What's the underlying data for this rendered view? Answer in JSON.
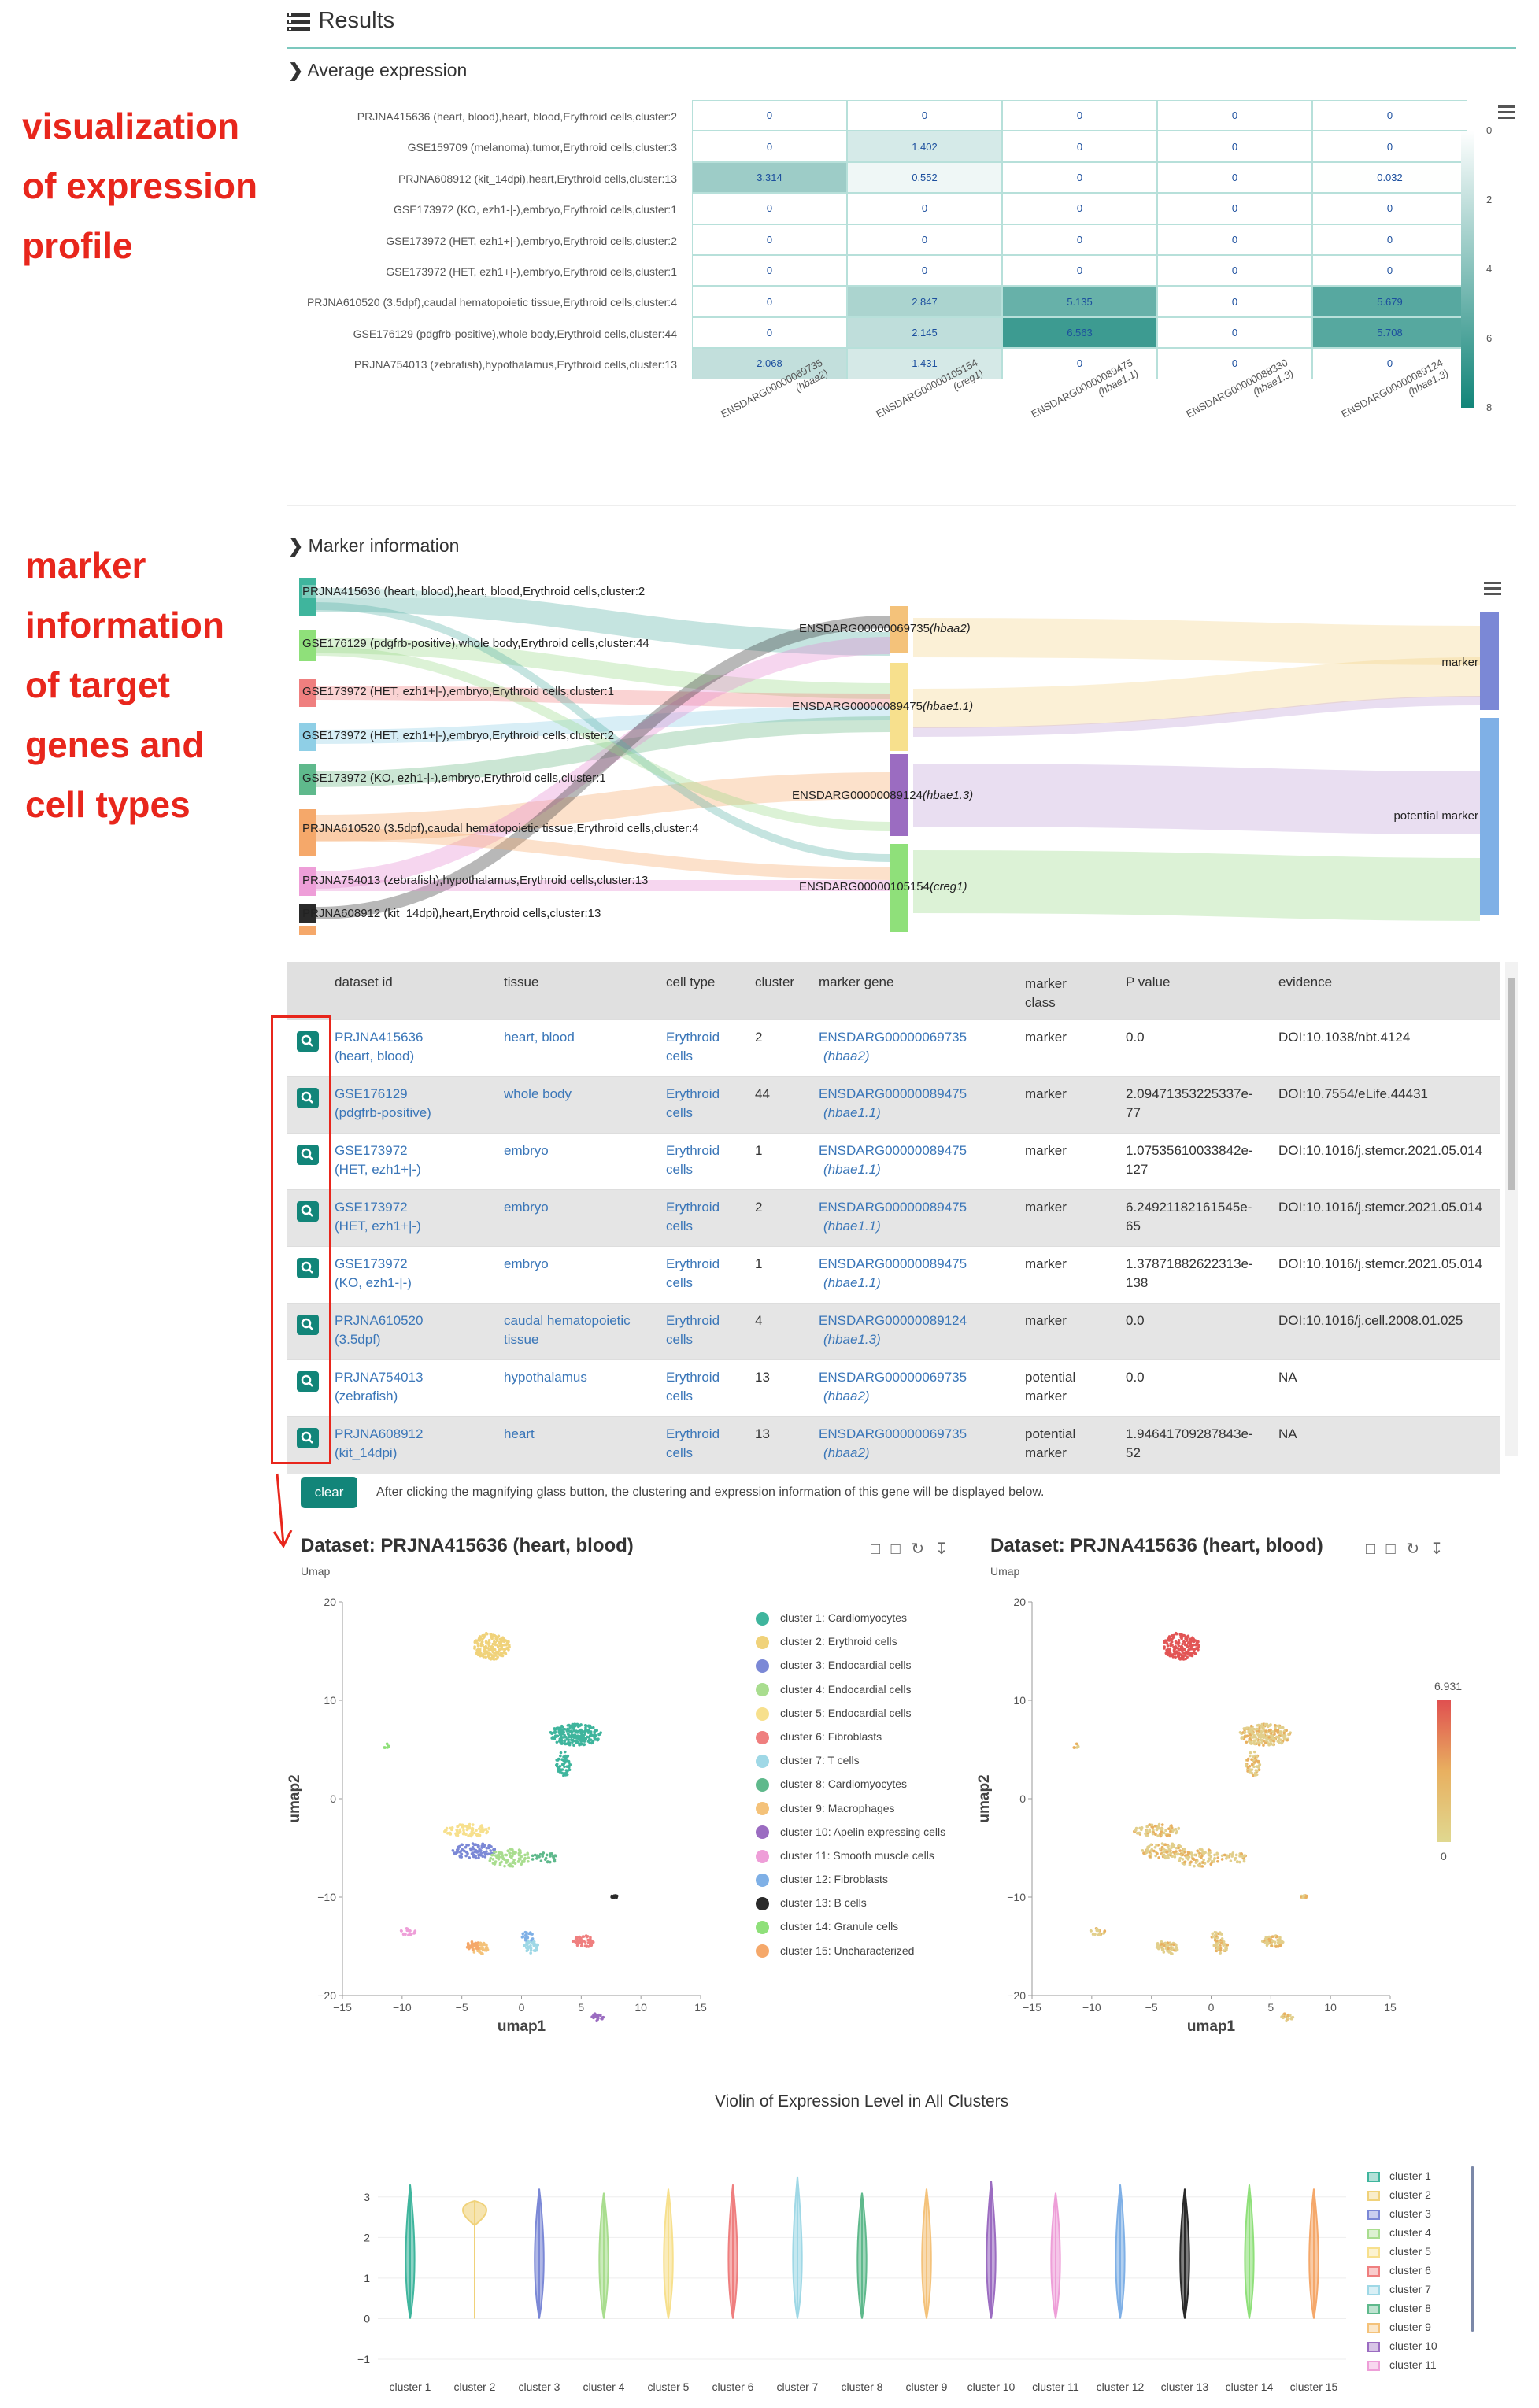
{
  "annotations": {
    "expression": [
      "visualization",
      "of expression",
      "profile"
    ],
    "marker": [
      "marker",
      "information",
      "of target",
      "genes and",
      "cell types"
    ]
  },
  "results": {
    "title": "Results",
    "average_expression_title": "Average expression",
    "marker_information_title": "Marker information"
  },
  "heatmap": {
    "rows": [
      "PRJNA415636 (heart, blood),heart, blood,Erythroid cells,cluster:2",
      "GSE159709 (melanoma),tumor,Erythroid cells,cluster:3",
      "PRJNA608912 (kit_14dpi),heart,Erythroid cells,cluster:13",
      "GSE173972 (KO, ezh1-|-),embryo,Erythroid cells,cluster:1",
      "GSE173972 (HET, ezh1+|-),embryo,Erythroid cells,cluster:2",
      "GSE173972 (HET, ezh1+|-),embryo,Erythroid cells,cluster:1",
      "PRJNA610520 (3.5dpf),caudal hematopoietic tissue,Erythroid cells,cluster:4",
      "GSE176129 (pdgfrb-positive),whole body,Erythroid cells,cluster:44",
      "PRJNA754013 (zebrafish),hypothalamus,Erythroid cells,cluster:13"
    ],
    "columns": [
      {
        "id": "ENSDARG00000069735",
        "gene": "(hbaa2)"
      },
      {
        "id": "ENSDARG00000105154",
        "gene": "(creg1)"
      },
      {
        "id": "ENSDARG00000089475",
        "gene": "(hbae1.1)"
      },
      {
        "id": "ENSDARG00000088330",
        "gene": "(hbae1.3)"
      },
      {
        "id": "ENSDARG00000089124",
        "gene": "(hbae1.3)"
      }
    ],
    "values": [
      [
        "0",
        "0",
        "0",
        "0",
        "0"
      ],
      [
        "0",
        "1.402",
        "0",
        "0",
        "0"
      ],
      [
        "3.314",
        "0.552",
        "0",
        "0",
        "0.032"
      ],
      [
        "0",
        "0",
        "0",
        "0",
        "0"
      ],
      [
        "0",
        "0",
        "0",
        "0",
        "0"
      ],
      [
        "0",
        "0",
        "0",
        "0",
        "0"
      ],
      [
        "0",
        "2.847",
        "5.135",
        "0",
        "5.679"
      ],
      [
        "0",
        "2.145",
        "6.563",
        "0",
        "5.708"
      ],
      [
        "2.068",
        "1.431",
        "0",
        "0",
        "0"
      ]
    ],
    "scale_ticks": [
      "0",
      "2",
      "4",
      "6",
      "8"
    ],
    "colors": {
      "low": "#ffffff",
      "high": "#128579"
    }
  },
  "sankey": {
    "sources": [
      "PRJNA415636 (heart, blood),heart, blood,Erythroid cells,cluster:2",
      "GSE176129 (pdgfrb-positive),whole body,Erythroid cells,cluster:44",
      "GSE173972 (HET, ezh1+|-),embryo,Erythroid cells,cluster:1",
      "GSE173972 (HET, ezh1+|-),embryo,Erythroid cells,cluster:2",
      "GSE173972 (KO, ezh1-|-),embryo,Erythroid cells,cluster:1",
      "PRJNA610520 (3.5dpf),caudal hematopoietic tissue,Erythroid cells,cluster:4",
      "PRJNA754013 (zebrafish),hypothalamus,Erythroid cells,cluster:13",
      "PRJNA608912 (kit_14dpi),heart,Erythroid cells,cluster:13"
    ],
    "genes": [
      {
        "id": "ENSDARG00000069735",
        "gene": "(hbaa2)"
      },
      {
        "id": "ENSDARG00000089475",
        "gene": "(hbae1.1)"
      },
      {
        "id": "ENSDARG00000089124",
        "gene": "(hbae1.3)"
      },
      {
        "id": "ENSDARG00000105154",
        "gene": "(creg1)"
      }
    ],
    "targets": [
      "marker",
      "potential marker"
    ]
  },
  "table": {
    "headers": [
      "dataset id",
      "tissue",
      "cell type",
      "cluster",
      "marker gene",
      "marker class",
      "P value",
      "evidence"
    ],
    "rows": [
      {
        "dataset": "PRJNA415636 (heart, blood)",
        "tissue": "heart, blood",
        "cell_type": "Erythroid cells",
        "cluster": "2",
        "gene_id": "ENSDARG00000069735",
        "gene": "(hbaa2)",
        "class": "marker",
        "pvalue": "0.0",
        "evidence": "DOI:10.1038/nbt.4124"
      },
      {
        "dataset": "GSE176129 (pdgfrb-positive)",
        "tissue": "whole body",
        "cell_type": "Erythroid cells",
        "cluster": "44",
        "gene_id": "ENSDARG00000089475",
        "gene": "(hbae1.1)",
        "class": "marker",
        "pvalue": "2.09471353225337e-77",
        "evidence": "DOI:10.7554/eLife.44431"
      },
      {
        "dataset": "GSE173972 (HET, ezh1+|-)",
        "tissue": "embryo",
        "cell_type": "Erythroid cells",
        "cluster": "1",
        "gene_id": "ENSDARG00000089475",
        "gene": "(hbae1.1)",
        "class": "marker",
        "pvalue": "1.07535610033842e-127",
        "evidence": "DOI:10.1016/j.stemcr.2021.05.014"
      },
      {
        "dataset": "GSE173972 (HET, ezh1+|-)",
        "tissue": "embryo",
        "cell_type": "Erythroid cells",
        "cluster": "2",
        "gene_id": "ENSDARG00000089475",
        "gene": "(hbae1.1)",
        "class": "marker",
        "pvalue": "6.24921182161545e-65",
        "evidence": "DOI:10.1016/j.stemcr.2021.05.014"
      },
      {
        "dataset": "GSE173972 (KO, ezh1-|-)",
        "tissue": "embryo",
        "cell_type": "Erythroid cells",
        "cluster": "1",
        "gene_id": "ENSDARG00000089475",
        "gene": "(hbae1.1)",
        "class": "marker",
        "pvalue": "1.37871882622313e-138",
        "evidence": "DOI:10.1016/j.stemcr.2021.05.014"
      },
      {
        "dataset": "PRJNA610520 (3.5dpf)",
        "tissue": "caudal hematopoietic tissue",
        "cell_type": "Erythroid cells",
        "cluster": "4",
        "gene_id": "ENSDARG00000089124",
        "gene": "(hbae1.3)",
        "class": "marker",
        "pvalue": "0.0",
        "evidence": "DOI:10.1016/j.cell.2008.01.025"
      },
      {
        "dataset": "PRJNA754013 (zebrafish)",
        "tissue": "hypothalamus",
        "cell_type": "Erythroid cells",
        "cluster": "13",
        "gene_id": "ENSDARG00000069735",
        "gene": "(hbaa2)",
        "class": "potential marker",
        "pvalue": "0.0",
        "evidence": "NA"
      },
      {
        "dataset": "PRJNA608912 (kit_14dpi)",
        "tissue": "heart",
        "cell_type": "Erythroid cells",
        "cluster": "13",
        "gene_id": "ENSDARG00000069735",
        "gene": "(hbaa2)",
        "class": "potential marker",
        "pvalue": "1.94641709287843e-52",
        "evidence": "NA"
      }
    ]
  },
  "clear": {
    "button": "clear",
    "hint": "After clicking the magnifying glass button, the clustering and expression information of this gene will be displayed below."
  },
  "umap": {
    "left_title": "Dataset: PRJNA415636 (heart, blood)",
    "right_title": "Dataset: PRJNA415636 (heart, blood)",
    "subtitle": "Umap",
    "xlabel": "umap1",
    "ylabel": "umap2",
    "x_ticks": [
      "−15",
      "−10",
      "−5",
      "0",
      "5",
      "10",
      "15"
    ],
    "y_ticks": [
      "20",
      "10",
      "0",
      "−10",
      "−20"
    ],
    "colorbar_max": "6.931",
    "colorbar_min": "0",
    "clusters": [
      {
        "label": "cluster 1: Cardiomyocytes",
        "color": "#3fb59d"
      },
      {
        "label": "cluster 2: Erythroid cells",
        "color": "#f0d27a"
      },
      {
        "label": "cluster 3: Endocardial cells",
        "color": "#7b88d6"
      },
      {
        "label": "cluster 4: Endocardial cells",
        "color": "#a9dd8f"
      },
      {
        "label": "cluster 5: Endocardial cells",
        "color": "#f7e08d"
      },
      {
        "label": "cluster 6: Fibroblasts",
        "color": "#ef7f7f"
      },
      {
        "label": "cluster 7: T cells",
        "color": "#9fd8e6"
      },
      {
        "label": "cluster 8: Cardiomyocytes",
        "color": "#5fb98c"
      },
      {
        "label": "cluster 9: Macrophages",
        "color": "#f4c27a"
      },
      {
        "label": "cluster 10: Apelin expressing cells",
        "color": "#9b6cc1"
      },
      {
        "label": "cluster 11: Smooth muscle cells",
        "color": "#ee9ed8"
      },
      {
        "label": "cluster 12: Fibroblasts",
        "color": "#7fb0e6"
      },
      {
        "label": "cluster 13: B cells",
        "color": "#2a2a2a"
      },
      {
        "label": "cluster 14: Granule cells",
        "color": "#8fe07a"
      },
      {
        "label": "cluster 15: Uncharacterized",
        "color": "#f5a86a"
      }
    ]
  },
  "violin": {
    "title": "Violin of Expression Level in All Clusters",
    "y_ticks": [
      "3",
      "2",
      "1",
      "0",
      "−1"
    ],
    "categories": [
      "cluster 1",
      "cluster 2",
      "cluster 3",
      "cluster 4",
      "cluster 5",
      "cluster 6",
      "cluster 7",
      "cluster 8",
      "cluster 9",
      "cluster 10",
      "cluster 11",
      "cluster 12",
      "cluster 13",
      "cluster 14",
      "cluster 15"
    ],
    "legend": [
      "cluster 1",
      "cluster 2",
      "cluster 3",
      "cluster 4",
      "cluster 5",
      "cluster 6",
      "cluster 7",
      "cluster 8",
      "cluster 9",
      "cluster 10",
      "cluster 11"
    ]
  },
  "chart_data": [
    {
      "type": "heatmap",
      "title": "Average expression",
      "x": [
        "ENSDARG00000069735 (hbaa2)",
        "ENSDARG00000105154 (creg1)",
        "ENSDARG00000089475 (hbae1.1)",
        "ENSDARG00000088330 (hbae1.3)",
        "ENSDARG00000089124 (hbae1.3)"
      ],
      "y": [
        "PRJNA415636 cluster:2",
        "GSE159709 cluster:3",
        "PRJNA608912 cluster:13",
        "GSE173972 KO cluster:1",
        "GSE173972 HET cluster:2",
        "GSE173972 HET cluster:1",
        "PRJNA610520 cluster:4",
        "GSE176129 cluster:44",
        "PRJNA754013 cluster:13"
      ],
      "values": [
        [
          0,
          0,
          0,
          0,
          0
        ],
        [
          0,
          1.402,
          0,
          0,
          0
        ],
        [
          3.314,
          0.552,
          0,
          0,
          0.032
        ],
        [
          0,
          0,
          0,
          0,
          0
        ],
        [
          0,
          0,
          0,
          0,
          0
        ],
        [
          0,
          0,
          0,
          0,
          0
        ],
        [
          0,
          2.847,
          5.135,
          0,
          5.679
        ],
        [
          0,
          2.145,
          6.563,
          0,
          5.708
        ],
        [
          2.068,
          1.431,
          0,
          0,
          0
        ]
      ],
      "zlim": [
        0,
        8
      ]
    },
    {
      "type": "violin",
      "title": "Violin of Expression Level in All Clusters",
      "categories": [
        "cluster 1",
        "cluster 2",
        "cluster 3",
        "cluster 4",
        "cluster 5",
        "cluster 6",
        "cluster 7",
        "cluster 8",
        "cluster 9",
        "cluster 10",
        "cluster 11",
        "cluster 12",
        "cluster 13",
        "cluster 14",
        "cluster 15"
      ],
      "ranges": [
        [
          0,
          3.3
        ],
        [
          0,
          2.9
        ],
        [
          0,
          3.2
        ],
        [
          0,
          3.1
        ],
        [
          0,
          3.2
        ],
        [
          0,
          3.3
        ],
        [
          0,
          3.5
        ],
        [
          0,
          3.1
        ],
        [
          0,
          3.2
        ],
        [
          0,
          3.4
        ],
        [
          0,
          3.1
        ],
        [
          0,
          3.3
        ],
        [
          0,
          3.2
        ],
        [
          0,
          3.3
        ],
        [
          0,
          3.2
        ]
      ],
      "ylim": [
        -1,
        3.5
      ]
    }
  ]
}
